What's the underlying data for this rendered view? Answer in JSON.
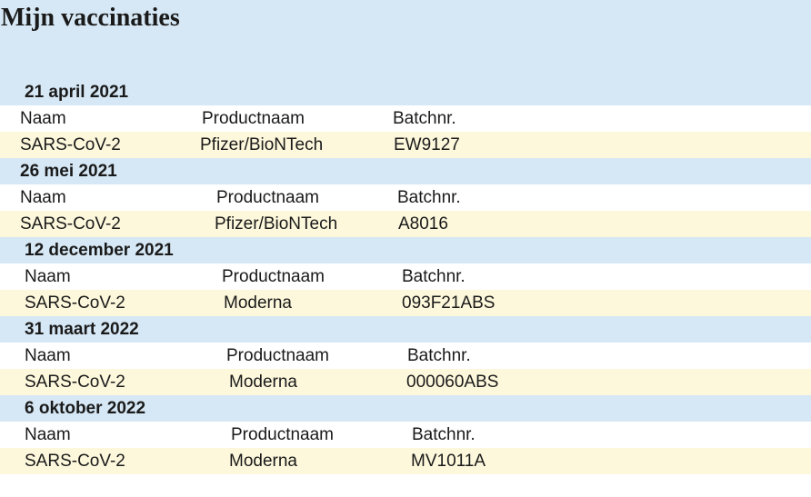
{
  "title": "Mijn vaccinaties",
  "columns": {
    "name": "Naam",
    "product": "Productnaam",
    "batch": "Batchnr."
  },
  "vaccinations": [
    {
      "date": "21 april 2021",
      "name": "SARS-CoV-2",
      "product": "Pfizer/BioNTech",
      "batch": "EW9127"
    },
    {
      "date": "26 mei 2021",
      "name": "SARS-CoV-2",
      "product": "Pfizer/BioNTech",
      "batch": "A8016"
    },
    {
      "date": "12 december 2021",
      "name": "SARS-CoV-2",
      "product": "Moderna",
      "batch": "093F21ABS"
    },
    {
      "date": "31 maart 2022",
      "name": "SARS-CoV-2",
      "product": "Moderna",
      "batch": "000060ABS"
    },
    {
      "date": "6 oktober 2022",
      "name": "SARS-CoV-2",
      "product": "Moderna",
      "batch": "MV1011A"
    }
  ],
  "colors": {
    "header_band": "#d6e8f5",
    "value_row": "#fdf8dc",
    "label_row": "#ffffff"
  }
}
